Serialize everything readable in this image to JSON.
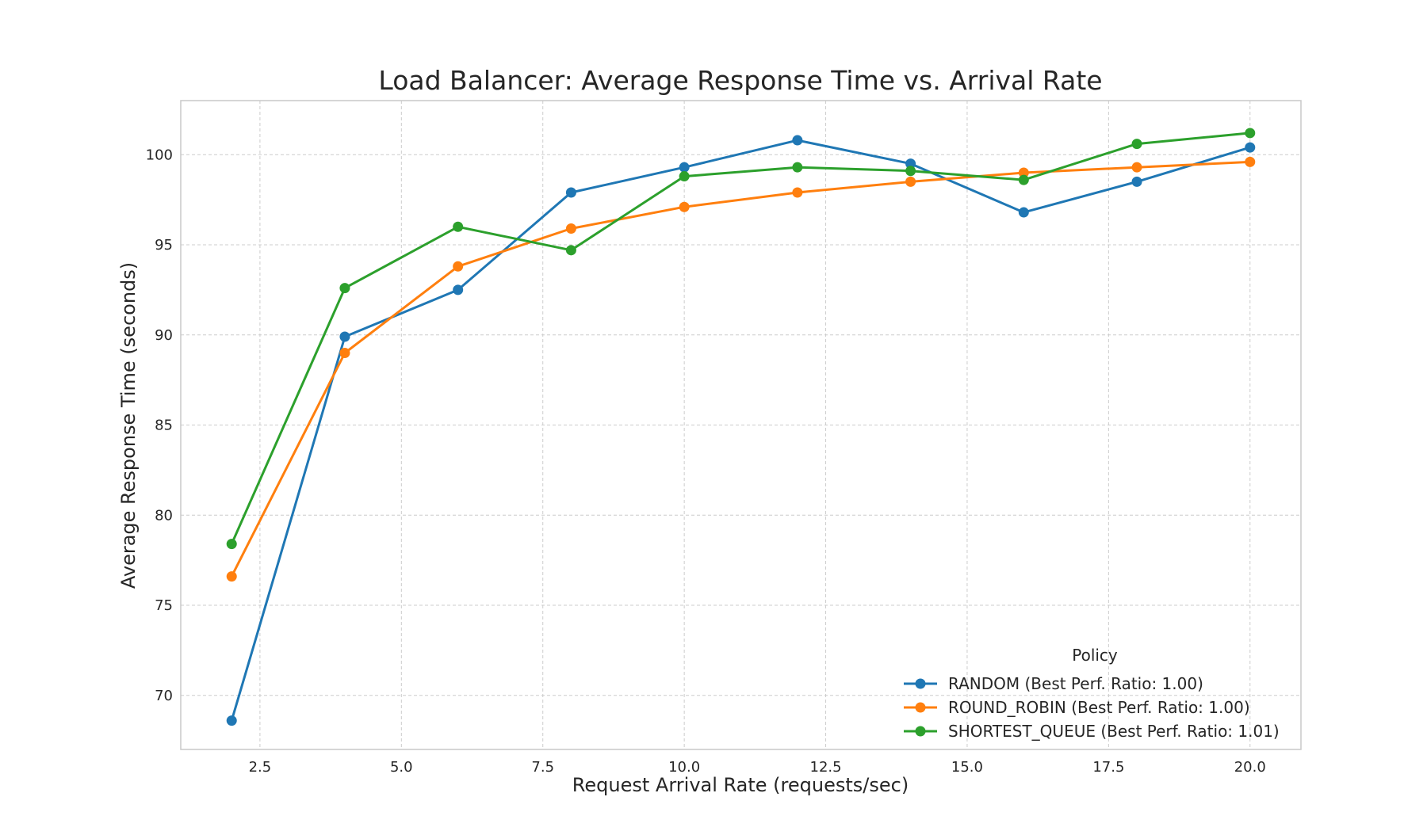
{
  "chart_data": {
    "type": "line",
    "title": "Load Balancer: Average Response Time vs. Arrival Rate",
    "xlabel": "Request Arrival Rate (requests/sec)",
    "ylabel": "Average Response Time (seconds)",
    "xlim": [
      1.1,
      20.9
    ],
    "ylim": [
      67.0,
      103.0
    ],
    "xticks": [
      2.5,
      5.0,
      7.5,
      10.0,
      12.5,
      15.0,
      17.5,
      20.0
    ],
    "xtick_labels": [
      "2.5",
      "5.0",
      "7.5",
      "10.0",
      "12.5",
      "15.0",
      "17.5",
      "20.0"
    ],
    "yticks": [
      70,
      75,
      80,
      85,
      90,
      95,
      100
    ],
    "ytick_labels": [
      "70",
      "75",
      "80",
      "85",
      "90",
      "95",
      "100"
    ],
    "grid": true,
    "legend": {
      "title": "Policy",
      "placement": "lower-right"
    },
    "x": [
      2,
      4,
      6,
      8,
      10,
      12,
      14,
      16,
      18,
      20
    ],
    "series": [
      {
        "name": "RANDOM (Best Perf. Ratio: 1.00)",
        "color": "#1f77b4",
        "values": [
          68.6,
          89.9,
          92.5,
          97.9,
          99.3,
          100.8,
          99.5,
          96.8,
          98.5,
          100.4
        ]
      },
      {
        "name": "ROUND_ROBIN (Best Perf. Ratio: 1.00)",
        "color": "#ff7f0e",
        "values": [
          76.6,
          89.0,
          93.8,
          95.9,
          97.1,
          97.9,
          98.5,
          99.0,
          99.3,
          99.6
        ]
      },
      {
        "name": "SHORTEST_QUEUE (Best Perf. Ratio: 1.01)",
        "color": "#2ca02c",
        "values": [
          78.4,
          92.6,
          96.0,
          94.7,
          98.8,
          99.3,
          99.1,
          98.6,
          100.6,
          101.2
        ]
      }
    ]
  }
}
